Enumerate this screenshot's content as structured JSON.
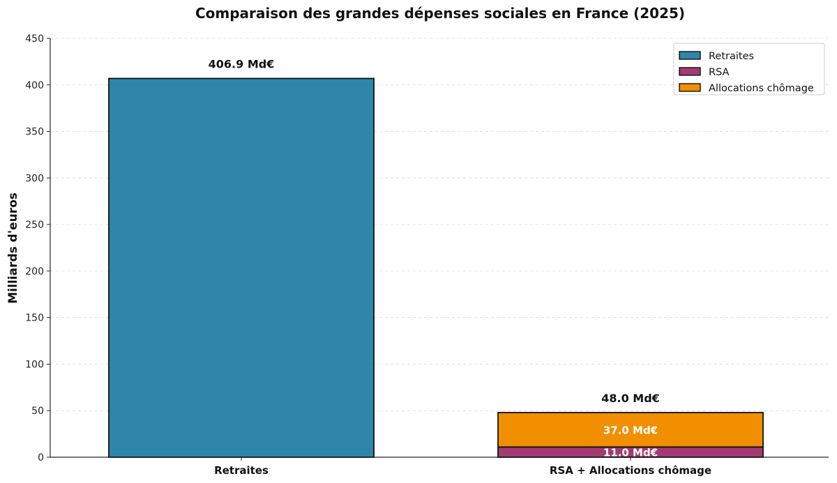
{
  "chart_data": {
    "type": "bar",
    "stacked": true,
    "title": "Comparaison des grandes dépenses sociales en France (2025)",
    "xlabel": "",
    "ylabel": "Milliards d'euros",
    "ylim": [
      0,
      450
    ],
    "yticks": [
      0,
      50,
      100,
      150,
      200,
      250,
      300,
      350,
      400,
      450
    ],
    "grid": "horizontal dashed",
    "legend_position": "top-right",
    "categories": [
      "Retraites",
      "RSA + Allocations chômage"
    ],
    "series": [
      {
        "name": "Retraites",
        "color": "#2e86ab",
        "values": [
          406.9,
          0
        ],
        "labels": [
          "",
          ""
        ]
      },
      {
        "name": "RSA",
        "color": "#a23b72",
        "values": [
          0,
          11.0
        ],
        "labels": [
          "",
          "11.0 Md€"
        ]
      },
      {
        "name": "Allocations chômage",
        "color": "#f18f01",
        "values": [
          0,
          37.0
        ],
        "labels": [
          "",
          "37.0 Md€"
        ]
      }
    ],
    "totals": [
      406.9,
      48.0
    ],
    "total_labels": [
      "406.9 Md€",
      "48.0 Md€"
    ]
  }
}
